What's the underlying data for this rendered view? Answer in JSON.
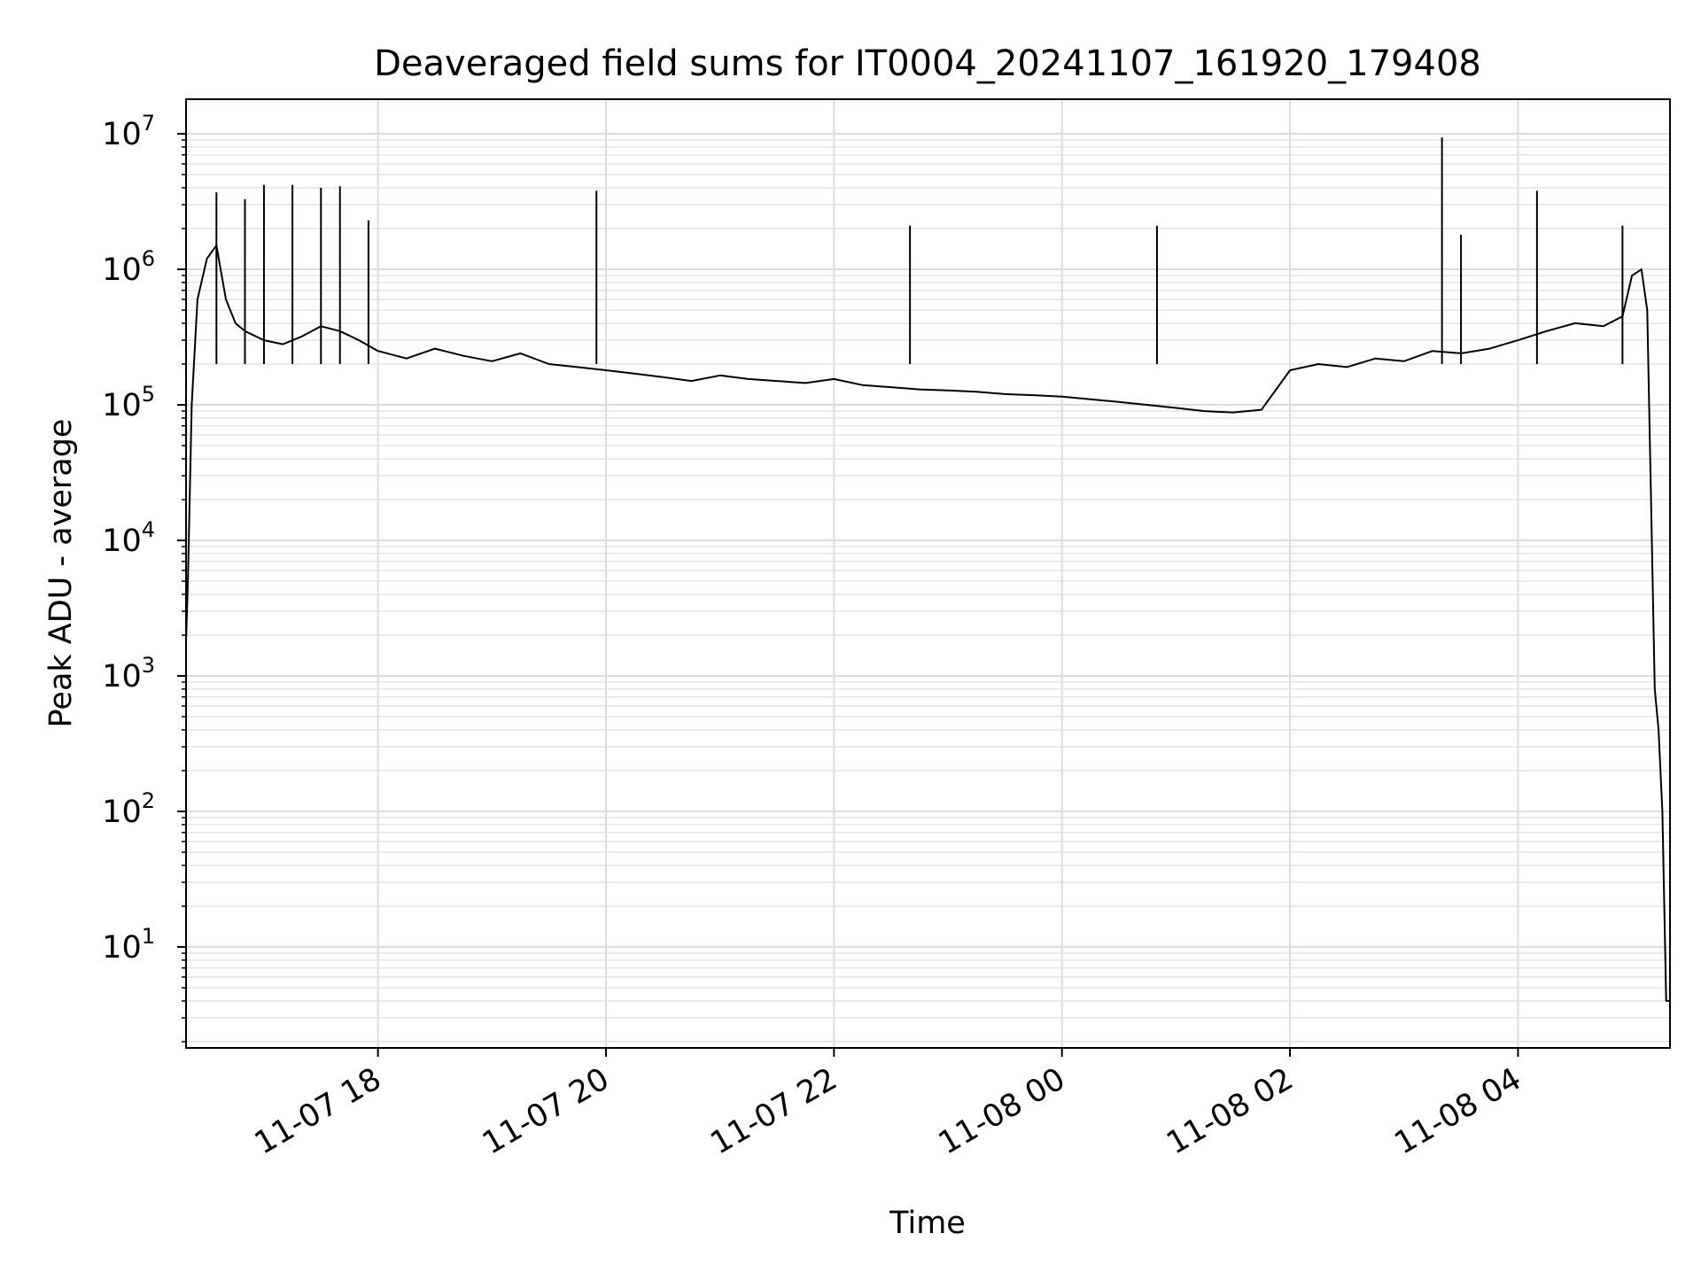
{
  "chart_data": {
    "type": "line",
    "title": "Deaveraged field sums for IT0004_20241107_161920_179408",
    "xlabel": "Time",
    "ylabel": "Peak ADU - average",
    "yscale": "log",
    "grid": true,
    "legend": "none",
    "xlim": [
      "2024-11-07 16:19",
      "2024-11-08 05:20"
    ],
    "ylim": [
      1.8,
      18000000
    ],
    "x_ticks": [
      {
        "value": "2024-11-07 18:00",
        "label": "11-07 18"
      },
      {
        "value": "2024-11-07 20:00",
        "label": "11-07 20"
      },
      {
        "value": "2024-11-07 22:00",
        "label": "11-07 22"
      },
      {
        "value": "2024-11-08 00:00",
        "label": "11-08 00"
      },
      {
        "value": "2024-11-08 02:00",
        "label": "11-08 02"
      },
      {
        "value": "2024-11-08 04:00",
        "label": "11-08 04"
      }
    ],
    "y_ticks": [
      {
        "value": 10,
        "base": "10",
        "exp": "1"
      },
      {
        "value": 100,
        "base": "10",
        "exp": "2"
      },
      {
        "value": 1000,
        "base": "10",
        "exp": "3"
      },
      {
        "value": 10000,
        "base": "10",
        "exp": "4"
      },
      {
        "value": 100000,
        "base": "10",
        "exp": "5"
      },
      {
        "value": 1000000,
        "base": "10",
        "exp": "6"
      },
      {
        "value": 10000000,
        "base": "10",
        "exp": "7"
      }
    ],
    "series": [
      {
        "color": "#000000",
        "x": [
          "2024-11-07 16:19",
          "2024-11-07 16:20",
          "2024-11-07 16:22",
          "2024-11-07 16:25",
          "2024-11-07 16:30",
          "2024-11-07 16:35",
          "2024-11-07 16:40",
          "2024-11-07 16:45",
          "2024-11-07 16:50",
          "2024-11-07 17:00",
          "2024-11-07 17:10",
          "2024-11-07 17:20",
          "2024-11-07 17:30",
          "2024-11-07 17:40",
          "2024-11-07 17:50",
          "2024-11-07 18:00",
          "2024-11-07 18:15",
          "2024-11-07 18:30",
          "2024-11-07 18:45",
          "2024-11-07 19:00",
          "2024-11-07 19:15",
          "2024-11-07 19:30",
          "2024-11-07 19:45",
          "2024-11-07 20:00",
          "2024-11-07 20:15",
          "2024-11-07 20:30",
          "2024-11-07 20:45",
          "2024-11-07 21:00",
          "2024-11-07 21:15",
          "2024-11-07 21:30",
          "2024-11-07 21:45",
          "2024-11-07 22:00",
          "2024-11-07 22:15",
          "2024-11-07 22:30",
          "2024-11-07 22:45",
          "2024-11-07 23:00",
          "2024-11-07 23:15",
          "2024-11-07 23:30",
          "2024-11-07 23:45",
          "2024-11-08 00:00",
          "2024-11-08 00:15",
          "2024-11-08 00:30",
          "2024-11-08 00:45",
          "2024-11-08 01:00",
          "2024-11-08 01:15",
          "2024-11-08 01:30",
          "2024-11-08 01:45",
          "2024-11-08 02:00",
          "2024-11-08 02:15",
          "2024-11-08 02:30",
          "2024-11-08 02:45",
          "2024-11-08 03:00",
          "2024-11-08 03:15",
          "2024-11-08 03:30",
          "2024-11-08 03:45",
          "2024-11-08 04:00",
          "2024-11-08 04:15",
          "2024-11-08 04:30",
          "2024-11-08 04:45",
          "2024-11-08 04:55",
          "2024-11-08 05:00",
          "2024-11-08 05:05",
          "2024-11-08 05:08",
          "2024-11-08 05:10",
          "2024-11-08 05:12",
          "2024-11-08 05:14",
          "2024-11-08 05:16",
          "2024-11-08 05:18",
          "2024-11-08 05:20"
        ],
        "y": [
          1800,
          5000,
          100000,
          600000,
          1200000,
          1500000,
          600000,
          400000,
          350000,
          300000,
          280000,
          320000,
          380000,
          350000,
          300000,
          250000,
          220000,
          260000,
          230000,
          210000,
          240000,
          200000,
          190000,
          180000,
          170000,
          160000,
          150000,
          165000,
          155000,
          150000,
          145000,
          155000,
          140000,
          135000,
          130000,
          128000,
          125000,
          120000,
          118000,
          115000,
          110000,
          105000,
          100000,
          95000,
          90000,
          88000,
          92000,
          180000,
          200000,
          190000,
          220000,
          210000,
          250000,
          240000,
          260000,
          300000,
          350000,
          400000,
          380000,
          450000,
          900000,
          1000000,
          500000,
          20000,
          800,
          400,
          100,
          4,
          4
        ]
      }
    ],
    "spikes": [
      {
        "x": "2024-11-07 16:35",
        "y": 3700000
      },
      {
        "x": "2024-11-07 16:50",
        "y": 3300000
      },
      {
        "x": "2024-11-07 17:00",
        "y": 4200000
      },
      {
        "x": "2024-11-07 17:15",
        "y": 4200000
      },
      {
        "x": "2024-11-07 17:30",
        "y": 4000000
      },
      {
        "x": "2024-11-07 17:40",
        "y": 4100000
      },
      {
        "x": "2024-11-07 17:55",
        "y": 2300000
      },
      {
        "x": "2024-11-07 19:55",
        "y": 3800000
      },
      {
        "x": "2024-11-07 22:40",
        "y": 2100000
      },
      {
        "x": "2024-11-08 00:50",
        "y": 2100000
      },
      {
        "x": "2024-11-08 03:20",
        "y": 9400000
      },
      {
        "x": "2024-11-08 03:30",
        "y": 1800000
      },
      {
        "x": "2024-11-08 04:10",
        "y": 3800000
      },
      {
        "x": "2024-11-08 04:55",
        "y": 2100000
      }
    ]
  }
}
